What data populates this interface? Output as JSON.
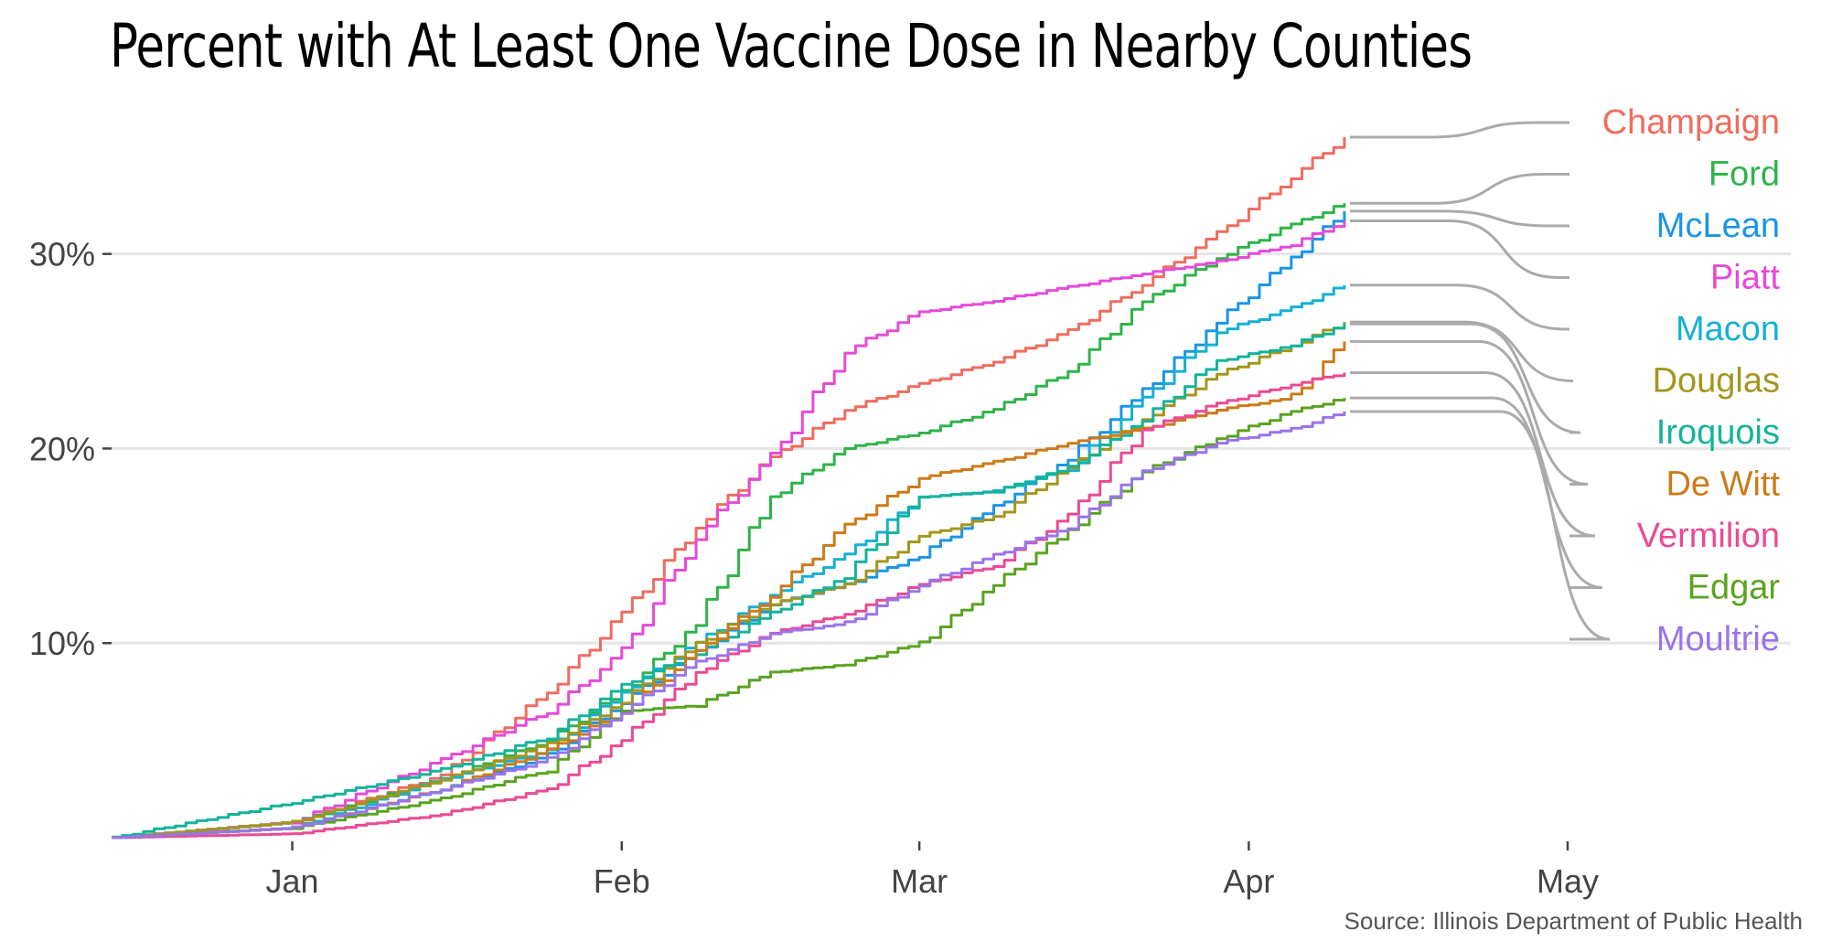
{
  "title": "Percent with At Least One Vaccine Dose in Nearby Counties",
  "source": "Source: Illinois Department of Public Health",
  "chart_data": {
    "type": "line",
    "title": "Percent with At Least One Vaccine Dose in Nearby Counties",
    "xlabel": "",
    "ylabel": "",
    "x_axis": {
      "type": "date",
      "range": [
        "2020-12-15",
        "2021-05-22"
      ],
      "ticks": [
        {
          "date": "2021-01-01",
          "label": "Jan"
        },
        {
          "date": "2021-02-01",
          "label": "Feb"
        },
        {
          "date": "2021-03-01",
          "label": "Mar"
        },
        {
          "date": "2021-04-01",
          "label": "Apr"
        },
        {
          "date": "2021-05-01",
          "label": "May"
        }
      ]
    },
    "y_axis": {
      "range": [
        0,
        36
      ],
      "ticks": [
        {
          "value": 10,
          "label": "10%"
        },
        {
          "value": 20,
          "label": "20%"
        },
        {
          "value": 30,
          "label": "30%"
        }
      ]
    },
    "grid": "horizontal",
    "legend": "direct labels at right end of lines",
    "label_connector_color": "#aaaaaa",
    "series": [
      {
        "name": "Champaign",
        "color": "#ef6c5f",
        "points": [
          [
            "2020-12-15",
            0
          ],
          [
            "2021-01-01",
            0.8
          ],
          [
            "2021-01-15",
            3.2
          ],
          [
            "2021-01-25",
            7.5
          ],
          [
            "2021-02-01",
            11.5
          ],
          [
            "2021-02-08",
            16.0
          ],
          [
            "2021-02-15",
            19.5
          ],
          [
            "2021-02-22",
            22.0
          ],
          [
            "2021-03-01",
            23.3
          ],
          [
            "2021-03-08",
            24.5
          ],
          [
            "2021-03-15",
            26.0
          ],
          [
            "2021-03-22",
            28.5
          ],
          [
            "2021-03-29",
            31.0
          ],
          [
            "2021-04-05",
            34.0
          ],
          [
            "2021-04-10",
            36.0
          ]
        ]
      },
      {
        "name": "Ford",
        "color": "#2fb34a",
        "points": [
          [
            "2020-12-15",
            0
          ],
          [
            "2021-01-01",
            0.8
          ],
          [
            "2021-01-15",
            3.0
          ],
          [
            "2021-01-25",
            5.0
          ],
          [
            "2021-02-01",
            7.5
          ],
          [
            "2021-02-08",
            11.0
          ],
          [
            "2021-02-15",
            17.5
          ],
          [
            "2021-02-22",
            20.0
          ],
          [
            "2021-03-01",
            20.8
          ],
          [
            "2021-03-08",
            22.0
          ],
          [
            "2021-03-15",
            24.0
          ],
          [
            "2021-03-22",
            27.5
          ],
          [
            "2021-03-29",
            29.8
          ],
          [
            "2021-04-05",
            31.5
          ],
          [
            "2021-04-10",
            32.6
          ]
        ]
      },
      {
        "name": "McLean",
        "color": "#1a95e6",
        "points": [
          [
            "2020-12-15",
            0
          ],
          [
            "2021-01-01",
            0.5
          ],
          [
            "2021-01-15",
            2.5
          ],
          [
            "2021-01-25",
            4.2
          ],
          [
            "2021-02-01",
            7.0
          ],
          [
            "2021-02-08",
            9.5
          ],
          [
            "2021-02-15",
            12.0
          ],
          [
            "2021-02-22",
            13.0
          ],
          [
            "2021-03-01",
            14.5
          ],
          [
            "2021-03-08",
            17.0
          ],
          [
            "2021-03-15",
            19.5
          ],
          [
            "2021-03-22",
            23.0
          ],
          [
            "2021-03-29",
            26.5
          ],
          [
            "2021-04-05",
            29.8
          ],
          [
            "2021-04-10",
            32.2
          ]
        ]
      },
      {
        "name": "Piatt",
        "color": "#e64ad8",
        "points": [
          [
            "2020-12-15",
            0
          ],
          [
            "2021-01-01",
            0.8
          ],
          [
            "2021-01-15",
            4.0
          ],
          [
            "2021-01-25",
            6.5
          ],
          [
            "2021-02-01",
            9.5
          ],
          [
            "2021-02-08",
            15.5
          ],
          [
            "2021-02-15",
            19.5
          ],
          [
            "2021-02-22",
            25.0
          ],
          [
            "2021-03-01",
            27.0
          ],
          [
            "2021-03-08",
            27.6
          ],
          [
            "2021-03-15",
            28.3
          ],
          [
            "2021-03-22",
            29.0
          ],
          [
            "2021-03-29",
            29.6
          ],
          [
            "2021-04-05",
            30.5
          ],
          [
            "2021-04-10",
            31.7
          ]
        ]
      },
      {
        "name": "Macon",
        "color": "#16b0d4",
        "points": [
          [
            "2020-12-15",
            0
          ],
          [
            "2021-01-01",
            0.5
          ],
          [
            "2021-01-15",
            3.0
          ],
          [
            "2021-01-25",
            4.5
          ],
          [
            "2021-02-01",
            7.5
          ],
          [
            "2021-02-08",
            10.0
          ],
          [
            "2021-02-15",
            12.5
          ],
          [
            "2021-02-22",
            14.5
          ],
          [
            "2021-03-01",
            17.5
          ],
          [
            "2021-03-08",
            17.8
          ],
          [
            "2021-03-15",
            19.0
          ],
          [
            "2021-03-22",
            22.5
          ],
          [
            "2021-03-29",
            26.0
          ],
          [
            "2021-04-05",
            27.2
          ],
          [
            "2021-04-10",
            28.4
          ]
        ]
      },
      {
        "name": "Douglas",
        "color": "#a3961d",
        "points": [
          [
            "2020-12-15",
            0
          ],
          [
            "2021-01-01",
            0.8
          ],
          [
            "2021-01-15",
            3.0
          ],
          [
            "2021-01-25",
            4.8
          ],
          [
            "2021-02-01",
            7.0
          ],
          [
            "2021-02-08",
            10.0
          ],
          [
            "2021-02-15",
            12.0
          ],
          [
            "2021-02-22",
            13.0
          ],
          [
            "2021-03-01",
            15.5
          ],
          [
            "2021-03-08",
            16.5
          ],
          [
            "2021-03-15",
            19.0
          ],
          [
            "2021-03-22",
            21.5
          ],
          [
            "2021-03-29",
            23.8
          ],
          [
            "2021-04-05",
            25.3
          ],
          [
            "2021-04-10",
            26.5
          ]
        ]
      },
      {
        "name": "Iroquois",
        "color": "#14b39a",
        "points": [
          [
            "2020-12-15",
            0
          ],
          [
            "2021-01-01",
            1.8
          ],
          [
            "2021-01-15",
            3.5
          ],
          [
            "2021-01-25",
            5.2
          ],
          [
            "2021-02-01",
            7.8
          ],
          [
            "2021-02-08",
            9.5
          ],
          [
            "2021-02-15",
            11.5
          ],
          [
            "2021-02-22",
            13.5
          ],
          [
            "2021-03-01",
            17.5
          ],
          [
            "2021-03-08",
            17.8
          ],
          [
            "2021-03-15",
            19.0
          ],
          [
            "2021-03-22",
            21.5
          ],
          [
            "2021-03-29",
            24.5
          ],
          [
            "2021-04-05",
            25.3
          ],
          [
            "2021-04-10",
            26.4
          ]
        ]
      },
      {
        "name": "De Witt",
        "color": "#cc7a1a",
        "points": [
          [
            "2020-12-15",
            0
          ],
          [
            "2021-01-01",
            0.5
          ],
          [
            "2021-01-15",
            2.5
          ],
          [
            "2021-01-25",
            4.5
          ],
          [
            "2021-02-01",
            6.5
          ],
          [
            "2021-02-08",
            9.5
          ],
          [
            "2021-02-15",
            12.5
          ],
          [
            "2021-02-22",
            16.0
          ],
          [
            "2021-03-01",
            18.5
          ],
          [
            "2021-03-08",
            19.3
          ],
          [
            "2021-03-15",
            20.3
          ],
          [
            "2021-03-22",
            21.0
          ],
          [
            "2021-03-29",
            22.0
          ],
          [
            "2021-04-05",
            22.6
          ],
          [
            "2021-04-10",
            25.5
          ]
        ]
      },
      {
        "name": "Vermilion",
        "color": "#ea4a94",
        "points": [
          [
            "2020-12-15",
            0
          ],
          [
            "2021-01-01",
            0.2
          ],
          [
            "2021-01-15",
            1.2
          ],
          [
            "2021-01-25",
            2.5
          ],
          [
            "2021-02-01",
            5.0
          ],
          [
            "2021-02-08",
            8.5
          ],
          [
            "2021-02-15",
            10.5
          ],
          [
            "2021-02-22",
            11.5
          ],
          [
            "2021-03-01",
            13.0
          ],
          [
            "2021-03-08",
            14.0
          ],
          [
            "2021-03-15",
            16.5
          ],
          [
            "2021-03-22",
            21.0
          ],
          [
            "2021-03-29",
            22.3
          ],
          [
            "2021-04-05",
            23.3
          ],
          [
            "2021-04-10",
            23.9
          ]
        ]
      },
      {
        "name": "Edgar",
        "color": "#5aa321",
        "points": [
          [
            "2020-12-15",
            0
          ],
          [
            "2021-01-01",
            0.5
          ],
          [
            "2021-01-15",
            2.0
          ],
          [
            "2021-01-25",
            3.5
          ],
          [
            "2021-02-01",
            6.5
          ],
          [
            "2021-02-08",
            6.8
          ],
          [
            "2021-02-15",
            8.5
          ],
          [
            "2021-02-22",
            8.9
          ],
          [
            "2021-03-01",
            10.0
          ],
          [
            "2021-03-08",
            13.0
          ],
          [
            "2021-03-15",
            15.8
          ],
          [
            "2021-03-22",
            18.8
          ],
          [
            "2021-03-29",
            20.5
          ],
          [
            "2021-04-05",
            21.9
          ],
          [
            "2021-04-10",
            22.6
          ]
        ]
      },
      {
        "name": "Moultrie",
        "color": "#9a74e9",
        "points": [
          [
            "2020-12-15",
            0
          ],
          [
            "2021-01-01",
            0.5
          ],
          [
            "2021-01-15",
            2.5
          ],
          [
            "2021-01-25",
            4.0
          ],
          [
            "2021-02-01",
            6.5
          ],
          [
            "2021-02-08",
            9.0
          ],
          [
            "2021-02-15",
            10.5
          ],
          [
            "2021-02-22",
            11.0
          ],
          [
            "2021-03-01",
            13.0
          ],
          [
            "2021-03-08",
            14.5
          ],
          [
            "2021-03-15",
            16.0
          ],
          [
            "2021-03-22",
            18.8
          ],
          [
            "2021-03-29",
            20.3
          ],
          [
            "2021-04-05",
            21.0
          ],
          [
            "2021-04-10",
            21.9
          ]
        ]
      }
    ]
  }
}
